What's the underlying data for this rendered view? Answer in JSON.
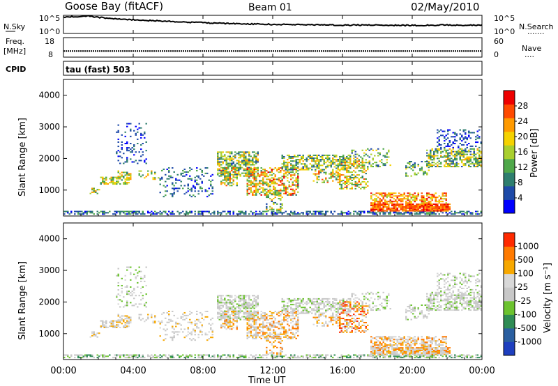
{
  "header": {
    "station": "Goose Bay (fitACF)",
    "beam": "Beam 01",
    "date": "02/May/2010"
  },
  "chart_data": [
    {
      "type": "line",
      "name": "N.Sky / N.Search noise",
      "left_label": "N.Sky",
      "right_label": "N.Search",
      "right_dots": ".......",
      "y_ticks_left": [
        "10^5",
        "10^0"
      ],
      "y_ticks_right": [
        "10^5",
        "10^0"
      ],
      "ylim": [
        0,
        5
      ],
      "x_hours": [
        0,
        0.5,
        1,
        1.5,
        2,
        3,
        4,
        6,
        8,
        10,
        12,
        14,
        16,
        18,
        20,
        22,
        24
      ],
      "values": [
        4.6,
        4.8,
        4.9,
        5.0,
        4.6,
        4.2,
        3.9,
        3.4,
        3.0,
        2.7,
        2.5,
        2.4,
        2.3,
        2.3,
        2.2,
        2.3,
        2.2
      ]
    },
    {
      "type": "line",
      "name": "Freq / Nave",
      "left_label": "Freq.",
      "left_unit": "[MHz]",
      "right_label": "Nave",
      "right_dots": "....",
      "y_ticks_left": [
        "18",
        "8"
      ],
      "y_ticks_right": [
        "60",
        "0"
      ],
      "ylim": [
        8,
        18
      ],
      "x_hours": [
        0,
        24
      ],
      "values": [
        11,
        11
      ]
    },
    {
      "type": "text",
      "left_label": "CPID",
      "mode": "tau (fast) 503"
    },
    {
      "type": "heatmap",
      "name": "Power",
      "ylabel": "Slant Range [km]",
      "y_ticks": [
        "1000",
        "2000",
        "3000",
        "4000"
      ],
      "ylim": [
        180,
        4500
      ],
      "colorbar_label": "Power [dB]",
      "colorbar_ticks": [
        "4",
        "8",
        "12",
        "16",
        "20",
        "24",
        "28"
      ],
      "colorbar_colors": [
        "#0000ff",
        "#1e4aa8",
        "#2e7e6e",
        "#4fa84a",
        "#a9cf2e",
        "#f5d200",
        "#ff9a00",
        "#ff4a00",
        "#ee0000"
      ],
      "note": "Scatter echoes concentrated 09:00-17:00 between 500-2500 km; strong ionospheric echoes 18:00-22:00 at 300-900 km"
    },
    {
      "type": "heatmap",
      "name": "Velocity",
      "ylabel": "Slant Range [km]",
      "y_ticks": [
        "1000",
        "2000",
        "3000",
        "4000"
      ],
      "ylim": [
        180,
        4500
      ],
      "colorbar_label": "Velocity [m s⁻¹]",
      "colorbar_ticks": [
        "1000",
        "500",
        "100",
        "25",
        "-25",
        "-100",
        "-500",
        "-1000"
      ],
      "colorbar_colors": [
        "#1e3fbf",
        "#2a5fa0",
        "#2f8c55",
        "#6cc32f",
        "#c8c8c8",
        "#d8d8d8",
        "#f7a800",
        "#ff7a00",
        "#ff2a00"
      ],
      "xlabel": "Time UT",
      "x_ticks": [
        "00:00",
        "04:00",
        "08:00",
        "12:00",
        "16:00",
        "20:00",
        "00:00"
      ],
      "xlim": [
        0,
        24
      ]
    }
  ],
  "colors": {
    "background": "#ffffff",
    "frame": "#000000"
  }
}
